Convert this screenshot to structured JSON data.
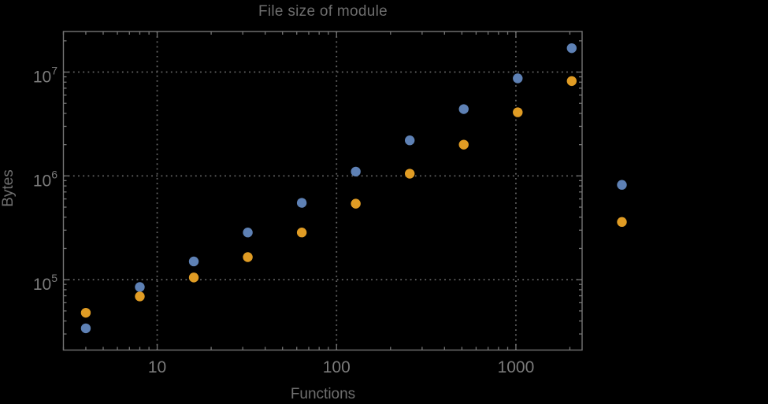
{
  "chart_data": {
    "type": "scatter",
    "title": "File size of module",
    "xlabel": "Functions",
    "ylabel": "Bytes",
    "x_scale": "log",
    "y_scale": "log",
    "x_range": [
      3,
      2340
    ],
    "y_range": [
      21000,
      24600000
    ],
    "x_ticks": {
      "values": [
        10,
        100,
        1000
      ],
      "labels": [
        "10",
        "100",
        "1000"
      ]
    },
    "y_ticks": {
      "values": [
        100000,
        1000000,
        10000000
      ],
      "labels": [
        "10^5",
        "10^6",
        "10^7"
      ]
    },
    "grid": {
      "style": "dotted",
      "x_lines": [
        10,
        100,
        1000
      ],
      "y_lines": [
        100000,
        1000000,
        10000000
      ]
    },
    "legend": {
      "visible": false
    },
    "clip_points": false,
    "series": [
      {
        "name": "blue",
        "color": "#5E81B5",
        "marker": "circle",
        "points": [
          [
            4,
            34000
          ],
          [
            8,
            85000
          ],
          [
            16,
            150000
          ],
          [
            32,
            285000
          ],
          [
            64,
            550000
          ],
          [
            128,
            1100000
          ],
          [
            256,
            2200000
          ],
          [
            512,
            4400000
          ],
          [
            1024,
            8700000
          ],
          [
            2048,
            17000000
          ],
          [
            3900,
            820000
          ]
        ]
      },
      {
        "name": "orange",
        "color": "#E09C24",
        "marker": "circle",
        "points": [
          [
            4,
            48000
          ],
          [
            8,
            69000
          ],
          [
            16,
            105000
          ],
          [
            32,
            165000
          ],
          [
            64,
            285000
          ],
          [
            128,
            540000
          ],
          [
            256,
            1050000
          ],
          [
            512,
            2000000
          ],
          [
            1024,
            4100000
          ],
          [
            2048,
            8200000
          ],
          [
            3900,
            360000
          ]
        ]
      }
    ],
    "colors": {
      "background": "#000000",
      "frame": "#747474",
      "grid": "#646464",
      "tick_text": "#7b7b7b",
      "title_text": "#6e6e6e"
    }
  }
}
